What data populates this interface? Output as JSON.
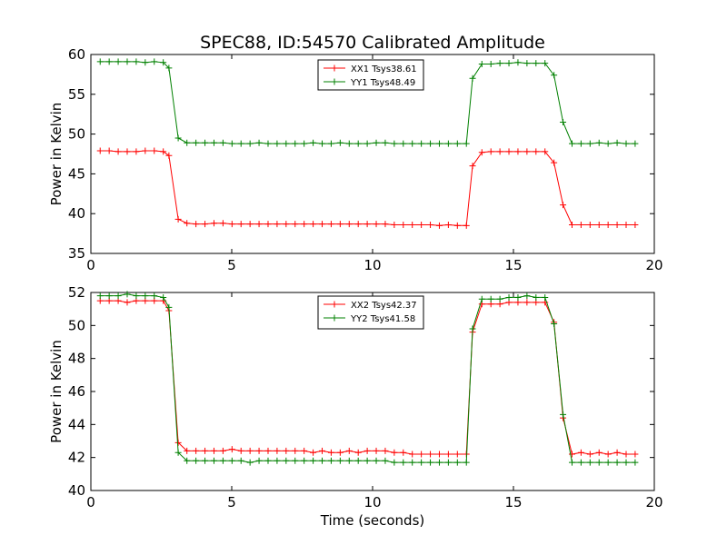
{
  "title": "SPEC88, ID:54570 Calibrated Amplitude",
  "xlabel": "Time (seconds)",
  "chart_data": [
    {
      "type": "line",
      "title": "SPEC88, ID:54570 Calibrated Amplitude",
      "xlabel": "",
      "ylabel": "Power in Kelvin",
      "xlim": [
        0,
        20
      ],
      "ylim": [
        35,
        60
      ],
      "xticks": [
        0,
        5,
        10,
        15,
        20
      ],
      "yticks": [
        35,
        40,
        45,
        50,
        55,
        60
      ],
      "grid": false,
      "legend_position": "top-center",
      "x": [
        0.33,
        0.65,
        0.97,
        1.29,
        1.61,
        1.93,
        2.25,
        2.57,
        2.77,
        3.1,
        3.41,
        3.73,
        4.05,
        4.37,
        4.69,
        5.01,
        5.33,
        5.65,
        5.97,
        6.29,
        6.61,
        6.93,
        7.25,
        7.57,
        7.89,
        8.21,
        8.53,
        8.85,
        9.17,
        9.49,
        9.81,
        10.13,
        10.45,
        10.77,
        11.09,
        11.41,
        11.73,
        12.05,
        12.37,
        12.69,
        13.01,
        13.33,
        13.55,
        13.88,
        14.2,
        14.52,
        14.84,
        15.16,
        15.48,
        15.8,
        16.12,
        16.44,
        16.76,
        17.08,
        17.4,
        17.72,
        18.04,
        18.36,
        18.68,
        19.0,
        19.32
      ],
      "series": [
        {
          "name": "XX1 Tsys38.61",
          "color": "#ff0000",
          "values": [
            47.9,
            47.9,
            47.8,
            47.8,
            47.8,
            47.9,
            47.9,
            47.8,
            47.3,
            39.3,
            38.8,
            38.7,
            38.7,
            38.8,
            38.8,
            38.7,
            38.7,
            38.7,
            38.7,
            38.7,
            38.7,
            38.7,
            38.7,
            38.7,
            38.7,
            38.7,
            38.7,
            38.7,
            38.7,
            38.7,
            38.7,
            38.7,
            38.7,
            38.6,
            38.6,
            38.6,
            38.6,
            38.6,
            38.5,
            38.6,
            38.5,
            38.5,
            46.0,
            47.7,
            47.8,
            47.8,
            47.8,
            47.8,
            47.8,
            47.8,
            47.8,
            46.4,
            41.1,
            38.6,
            38.6,
            38.6,
            38.6,
            38.6,
            38.6,
            38.6,
            38.6
          ]
        },
        {
          "name": "YY1 Tsys48.49",
          "color": "#008000",
          "values": [
            59.1,
            59.1,
            59.1,
            59.1,
            59.1,
            59.0,
            59.1,
            59.0,
            58.3,
            49.5,
            48.9,
            48.9,
            48.9,
            48.9,
            48.9,
            48.8,
            48.8,
            48.8,
            48.9,
            48.8,
            48.8,
            48.8,
            48.8,
            48.8,
            48.9,
            48.8,
            48.8,
            48.9,
            48.8,
            48.8,
            48.8,
            48.9,
            48.9,
            48.8,
            48.8,
            48.8,
            48.8,
            48.8,
            48.8,
            48.8,
            48.8,
            48.8,
            57.0,
            58.8,
            58.8,
            58.9,
            58.9,
            59.0,
            58.9,
            58.9,
            58.9,
            57.4,
            51.5,
            48.8,
            48.8,
            48.8,
            48.9,
            48.8,
            48.9,
            48.8,
            48.8
          ]
        }
      ]
    },
    {
      "type": "line",
      "title": "",
      "xlabel": "Time (seconds)",
      "ylabel": "Power in Kelvin",
      "xlim": [
        0,
        20
      ],
      "ylim": [
        40,
        52
      ],
      "xticks": [
        0,
        5,
        10,
        15,
        20
      ],
      "yticks": [
        40,
        42,
        44,
        46,
        48,
        50,
        52
      ],
      "grid": false,
      "legend_position": "top-center",
      "x": [
        0.33,
        0.65,
        0.97,
        1.29,
        1.61,
        1.93,
        2.25,
        2.57,
        2.77,
        3.1,
        3.41,
        3.73,
        4.05,
        4.37,
        4.69,
        5.01,
        5.33,
        5.65,
        5.97,
        6.29,
        6.61,
        6.93,
        7.25,
        7.57,
        7.89,
        8.21,
        8.53,
        8.85,
        9.17,
        9.49,
        9.81,
        10.13,
        10.45,
        10.77,
        11.09,
        11.41,
        11.73,
        12.05,
        12.37,
        12.69,
        13.01,
        13.33,
        13.55,
        13.88,
        14.2,
        14.52,
        14.84,
        15.16,
        15.48,
        15.8,
        16.12,
        16.44,
        16.76,
        17.08,
        17.4,
        17.72,
        18.04,
        18.36,
        18.68,
        19.0,
        19.32
      ],
      "series": [
        {
          "name": "XX2 Tsys42.37",
          "color": "#ff0000",
          "values": [
            51.5,
            51.5,
            51.5,
            51.4,
            51.5,
            51.5,
            51.5,
            51.5,
            50.9,
            42.9,
            42.4,
            42.4,
            42.4,
            42.4,
            42.4,
            42.5,
            42.4,
            42.4,
            42.4,
            42.4,
            42.4,
            42.4,
            42.4,
            42.4,
            42.3,
            42.4,
            42.3,
            42.3,
            42.4,
            42.3,
            42.4,
            42.4,
            42.4,
            42.3,
            42.3,
            42.2,
            42.2,
            42.2,
            42.2,
            42.2,
            42.2,
            42.2,
            49.6,
            51.3,
            51.3,
            51.3,
            51.4,
            51.4,
            51.4,
            51.4,
            51.4,
            50.2,
            44.4,
            42.2,
            42.3,
            42.2,
            42.3,
            42.2,
            42.3,
            42.2,
            42.2
          ]
        },
        {
          "name": "YY2 Tsys41.58",
          "color": "#008000",
          "values": [
            51.8,
            51.8,
            51.8,
            51.9,
            51.8,
            51.8,
            51.8,
            51.7,
            51.1,
            42.3,
            41.8,
            41.8,
            41.8,
            41.8,
            41.8,
            41.8,
            41.8,
            41.7,
            41.8,
            41.8,
            41.8,
            41.8,
            41.8,
            41.8,
            41.8,
            41.8,
            41.8,
            41.8,
            41.8,
            41.8,
            41.8,
            41.8,
            41.8,
            41.7,
            41.7,
            41.7,
            41.7,
            41.7,
            41.7,
            41.7,
            41.7,
            41.7,
            49.8,
            51.6,
            51.6,
            51.6,
            51.7,
            51.7,
            51.8,
            51.7,
            51.7,
            50.1,
            44.6,
            41.7,
            41.7,
            41.7,
            41.7,
            41.7,
            41.7,
            41.7,
            41.7
          ]
        }
      ]
    }
  ]
}
